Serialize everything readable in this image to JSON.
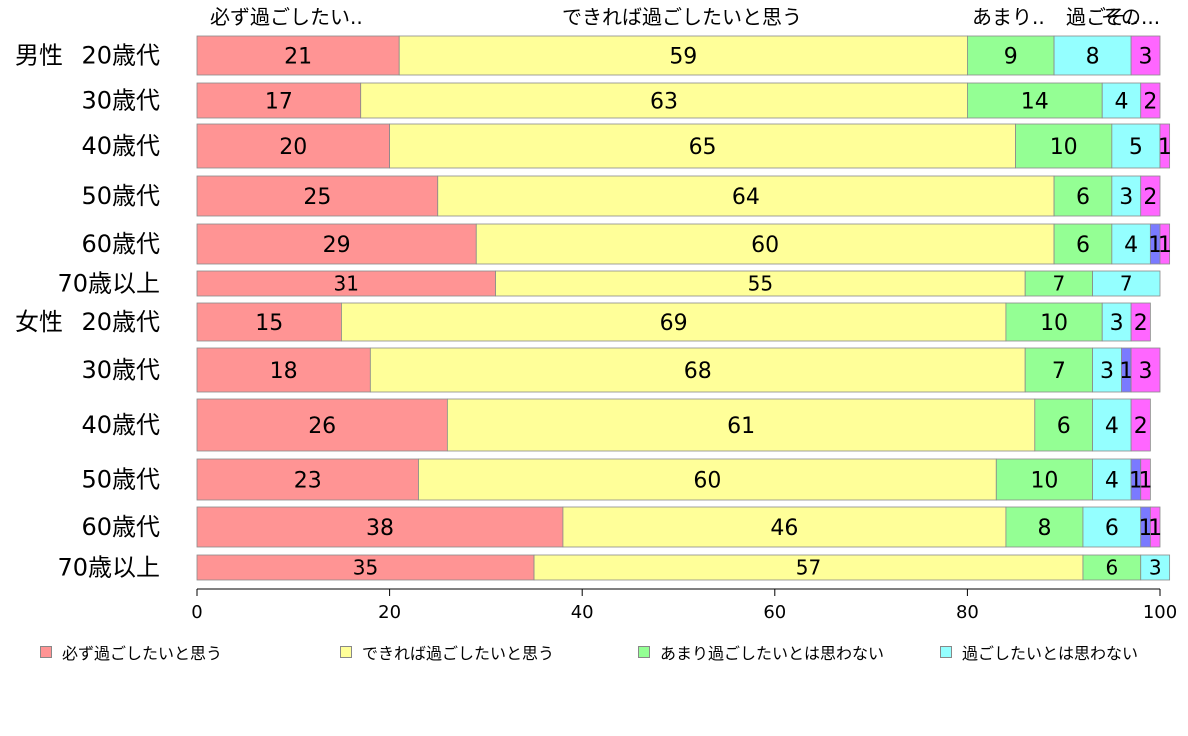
{
  "chart_data": {
    "type": "bar",
    "orientation": "horizontal",
    "stacked": true,
    "xlim": [
      0,
      100
    ],
    "xticks": [
      0,
      20,
      40,
      60,
      80,
      100
    ],
    "header_labels": [
      "必ず過ごしたい..",
      "できれば過ごしたいと思う",
      "あまり..",
      "過ごそ..",
      "その..."
    ],
    "groups": [
      {
        "label": "男性",
        "start": 0
      },
      {
        "label": "女性",
        "start": 6
      }
    ],
    "categories": [
      "20歳代",
      "30歳代",
      "40歳代",
      "50歳代",
      "60歳代",
      "70歳以上",
      "20歳代",
      "30歳代",
      "40歳代",
      "50歳代",
      "60歳代",
      "70歳以上"
    ],
    "series": [
      {
        "name": "必ず過ごしたいと思う",
        "color": "#ff9494",
        "values": [
          21,
          17,
          20,
          25,
          29,
          31,
          15,
          18,
          26,
          23,
          38,
          35
        ]
      },
      {
        "name": "できれば過ごしたいと思う",
        "color": "#ffff99",
        "values": [
          59,
          63,
          65,
          64,
          60,
          55,
          69,
          68,
          61,
          60,
          46,
          57
        ]
      },
      {
        "name": "あまり過ごしたいとは思わない",
        "color": "#94ff94",
        "values": [
          9,
          14,
          10,
          6,
          6,
          7,
          10,
          7,
          6,
          10,
          8,
          6
        ]
      },
      {
        "name": "過ごしたいとは思わない",
        "color": "#94ffff",
        "values": [
          8,
          4,
          5,
          3,
          4,
          7,
          3,
          3,
          4,
          4,
          6,
          3
        ]
      },
      {
        "name": "",
        "color": "#7a7aff",
        "values": [
          0,
          0,
          0,
          0,
          1,
          0,
          0,
          1,
          0,
          1,
          1,
          0
        ]
      },
      {
        "name": "",
        "color": "#ff66ff",
        "values": [
          3,
          2,
          1,
          2,
          1,
          0,
          2,
          3,
          2,
          1,
          1,
          0
        ]
      }
    ]
  }
}
